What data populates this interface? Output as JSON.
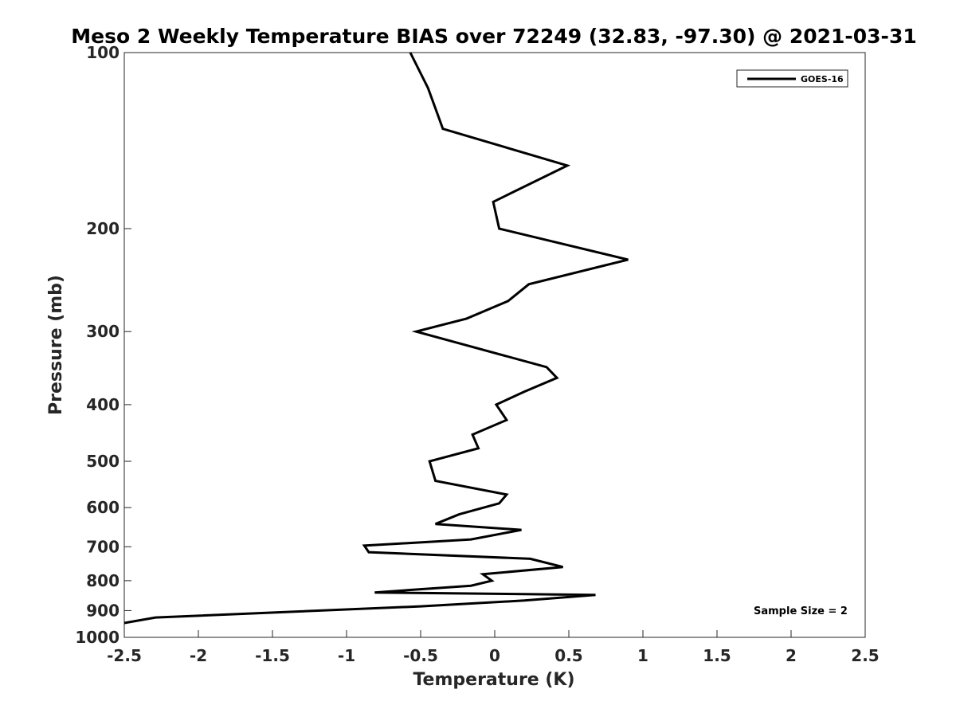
{
  "chart_data": {
    "type": "line",
    "title": "Meso 2 Weekly Temperature BIAS over 72249 (32.83, -97.30) @ 2021-03-31",
    "xlabel": "Temperature (K)",
    "ylabel": "Pressure (mb)",
    "xlim": [
      -2.5,
      2.5
    ],
    "ylim": [
      100,
      1000
    ],
    "y_scale": "log",
    "y_reversed": true,
    "grid": false,
    "x_ticks": [
      "-2.5",
      "-2",
      "-1.5",
      "-1",
      "-0.5",
      "0",
      "0.5",
      "1",
      "1.5",
      "2",
      "2.5"
    ],
    "x_tick_values": [
      -2.5,
      -2,
      -1.5,
      -1,
      -0.5,
      0,
      0.5,
      1,
      1.5,
      2,
      2.5
    ],
    "y_ticks": [
      "100",
      "200",
      "300",
      "400",
      "500",
      "600",
      "700",
      "800",
      "900",
      "1000"
    ],
    "y_tick_values": [
      100,
      200,
      300,
      400,
      500,
      600,
      700,
      800,
      900,
      1000
    ],
    "legend_position": "top-right",
    "series": [
      {
        "name": "GOES-16",
        "color": "#000000",
        "points": [
          [
            -0.57,
            100
          ],
          [
            -0.45,
            115
          ],
          [
            -0.35,
            135
          ],
          [
            0.49,
            156
          ],
          [
            -0.01,
            180
          ],
          [
            0.03,
            200
          ],
          [
            0.9,
            226
          ],
          [
            0.23,
            249
          ],
          [
            0.09,
            266
          ],
          [
            -0.19,
            285
          ],
          [
            -0.53,
            300
          ],
          [
            0.35,
            345
          ],
          [
            0.42,
            360
          ],
          [
            0.2,
            380
          ],
          [
            0.01,
            400
          ],
          [
            0.08,
            425
          ],
          [
            -0.15,
            450
          ],
          [
            -0.11,
            475
          ],
          [
            -0.44,
            500
          ],
          [
            -0.4,
            540
          ],
          [
            0.08,
            570
          ],
          [
            0.03,
            590
          ],
          [
            -0.24,
            616
          ],
          [
            -0.4,
            640
          ],
          [
            0.18,
            655
          ],
          [
            -0.16,
            680
          ],
          [
            -0.88,
            697
          ],
          [
            -0.85,
            715
          ],
          [
            0.24,
            734
          ],
          [
            0.46,
            758
          ],
          [
            -0.08,
            780
          ],
          [
            -0.02,
            800
          ],
          [
            -0.16,
            816
          ],
          [
            -0.81,
            838
          ],
          [
            0.68,
            846
          ],
          [
            0.2,
            865
          ],
          [
            -0.5,
            885
          ],
          [
            -2.29,
            925
          ],
          [
            -2.5,
            945
          ]
        ]
      }
    ],
    "annotations": [
      "Sample Size = 2"
    ]
  }
}
